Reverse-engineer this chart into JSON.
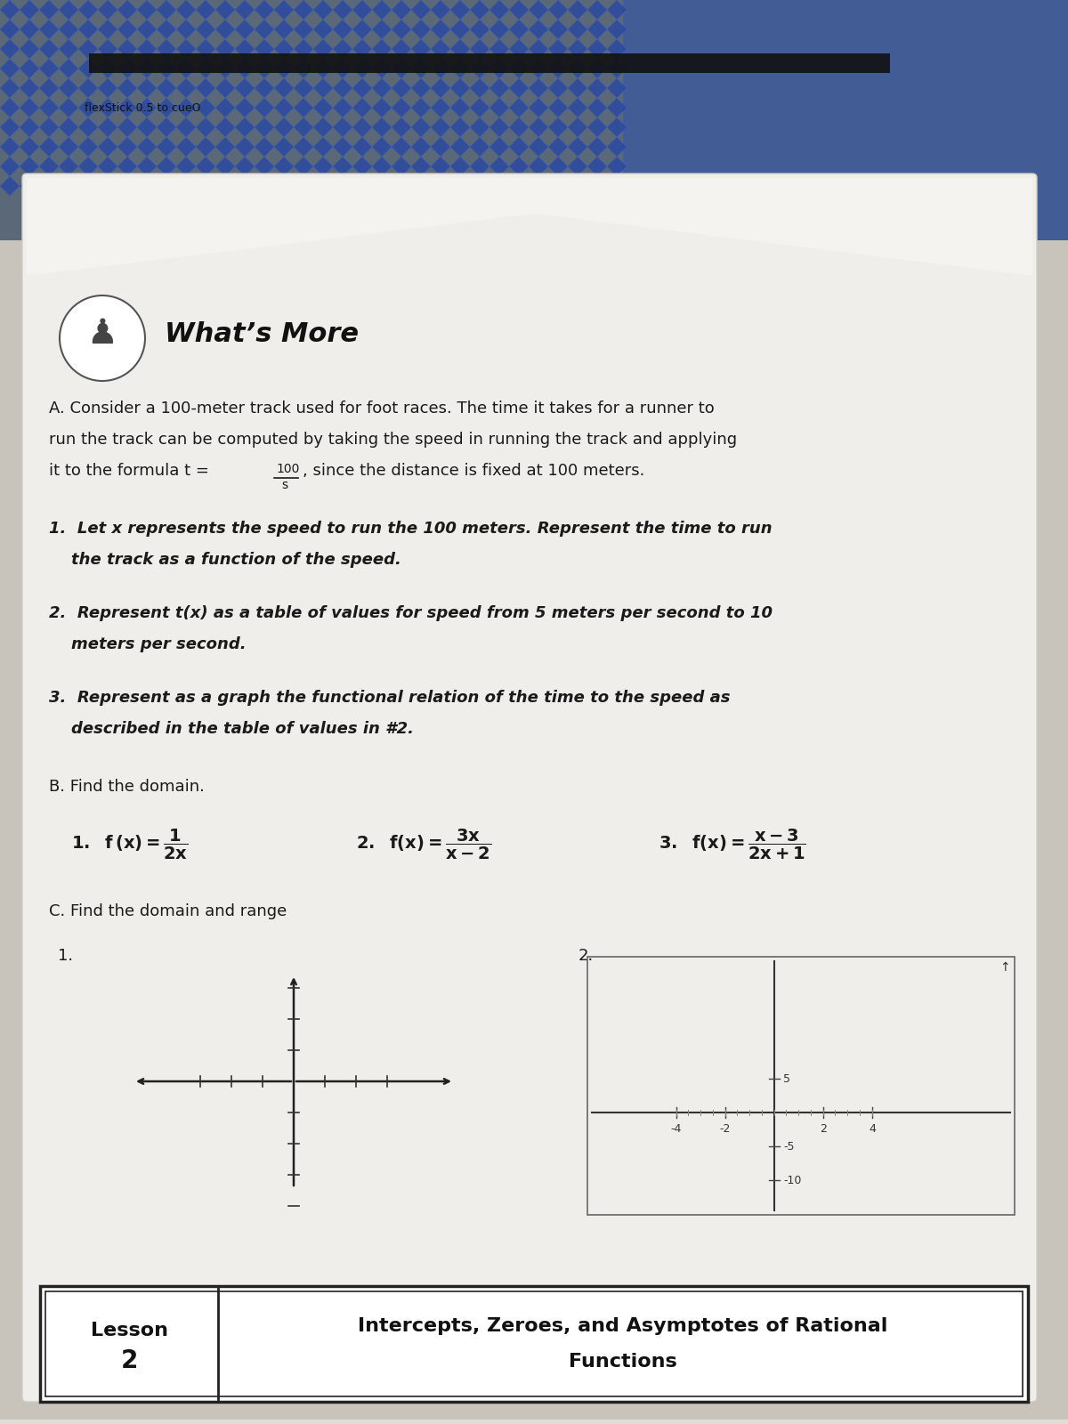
{
  "bg_outer": "#c8c4bc",
  "bg_top": "#6e7a8a",
  "paper_color": "#e8e6e0",
  "text_color": "#1a1a1a",
  "title": "What’s More",
  "header_text": "flexStick 0.5 to cueO",
  "intro_line1": "A. Consider a 100-meter track used for foot races. The time it takes for a runner to",
  "intro_line2": "run the track can be computed by taking the speed in running the track and applying",
  "intro_line3": "it to the formula t = 100/s, since the distance is fixed at 100 meters.",
  "item1_line1": "1.  Let x represents the speed to run the 100 meters. Represent the time to run",
  "item1_line2": "    the track as a function of the speed.",
  "item2_line1": "2.  Represent t(x) as a table of values for speed from 5 meters per second to 10",
  "item2_line2": "    meters per second.",
  "item3_line1": "3.  Represent as a graph the functional relation of the time to the speed as",
  "item3_line2": "    described in the table of values in #2.",
  "section_B": "B. Find the domain.",
  "section_C": "C. Find the domain and range",
  "lesson_left": "Lesson\n2",
  "lesson_right_1": "Intercepts, Zeroes, and Asymptotes of Rational",
  "lesson_right_2": "Functions"
}
